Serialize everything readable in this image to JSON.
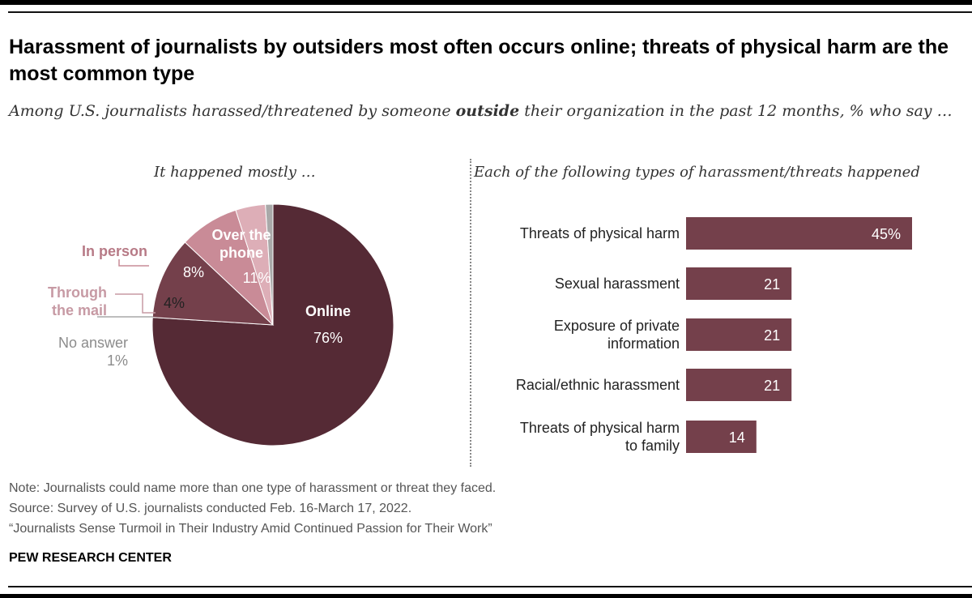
{
  "title": "Harassment of journalists by outsiders most often occurs online; threats of physical harm are the most common type",
  "subtitle_parts": [
    "Among U.S. journalists harassed/threatened by someone ",
    "outside",
    " their organization in the past 12 months, % who say …"
  ],
  "left_heading": "It happened mostly …",
  "right_heading": "Each of the following types of harassment/threats happened",
  "chart_data": [
    {
      "type": "pie",
      "slices": [
        {
          "name_lines": [
            "Online"
          ],
          "value": 76,
          "value_label": "76%",
          "color": "#552a35"
        },
        {
          "name_lines": [
            "Over the",
            "phone"
          ],
          "value": 11,
          "value_label": "11%",
          "color": "#74404b"
        },
        {
          "name_lines": [
            "In person"
          ],
          "value": 8,
          "value_label": "8%",
          "color": "#c98b97"
        },
        {
          "name_lines": [
            "Through",
            "the mail"
          ],
          "value": 4,
          "value_label": "4%",
          "color": "#ddaeb7"
        },
        {
          "name_lines": [
            "No answer"
          ],
          "value": 1,
          "value_label": "1%",
          "color": "#a9a9a9"
        }
      ]
    },
    {
      "type": "bar",
      "orientation": "horizontal",
      "categories": [
        [
          "Threats of physical harm"
        ],
        [
          "Sexual harassment"
        ],
        [
          "Exposure of private",
          "information"
        ],
        [
          "Racial/ethnic harassment"
        ],
        [
          "Threats of physical harm",
          "to family"
        ]
      ],
      "values": [
        45,
        21,
        21,
        21,
        14
      ],
      "value_labels": [
        "45%",
        "21",
        "21",
        "21",
        "14"
      ],
      "color": "#74404b"
    }
  ],
  "footer": {
    "note": "Note: Journalists could name more than one type of harassment or threat they faced.",
    "source": "Source: Survey of U.S. journalists conducted Feb. 16-March 17, 2022.",
    "report": "“Journalists Sense Turmoil in Their Industry Amid Continued Passion for Their Work”",
    "brand": "PEW RESEARCH CENTER"
  }
}
